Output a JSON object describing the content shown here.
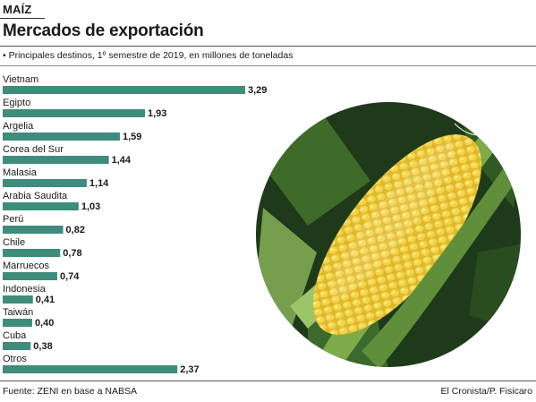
{
  "kicker": "MAÍZ",
  "title": "Mercados de exportación",
  "subtitle": "• Principales destinos, 1º semestre de 2019, en millones de toneladas",
  "footer": {
    "source": "Fuente: ZENI en base a NABSA",
    "credit": "El Cronista/P. Fisicaro"
  },
  "colors": {
    "bar": "#3d8c7c",
    "photo_background": "#1e3a1a",
    "husk": "#7faa4a",
    "kernel": "#f1cf3c"
  },
  "image": {
    "icon": "corn-cob-icon"
  },
  "chart_data": {
    "type": "bar",
    "orientation": "horizontal",
    "categories": [
      "Vietnam",
      "Egipto",
      "Argelia",
      "Corea del Sur",
      "Malasia",
      "Arabia Saudita",
      "Perú",
      "Chile",
      "Marruecos",
      "Indonesia",
      "Taiwán",
      "Cuba",
      "Otros"
    ],
    "values": [
      3.29,
      1.93,
      1.59,
      1.44,
      1.14,
      1.03,
      0.82,
      0.78,
      0.74,
      0.41,
      0.4,
      0.38,
      2.37
    ],
    "value_labels": [
      "3,29",
      "1,93",
      "1,59",
      "1,44",
      "1,14",
      "1,03",
      "0,82",
      "0,78",
      "0,74",
      "0,41",
      "0,40",
      "0,38",
      "2,37"
    ],
    "xlim": [
      0,
      3.29
    ],
    "grid": false,
    "legend": "none"
  }
}
